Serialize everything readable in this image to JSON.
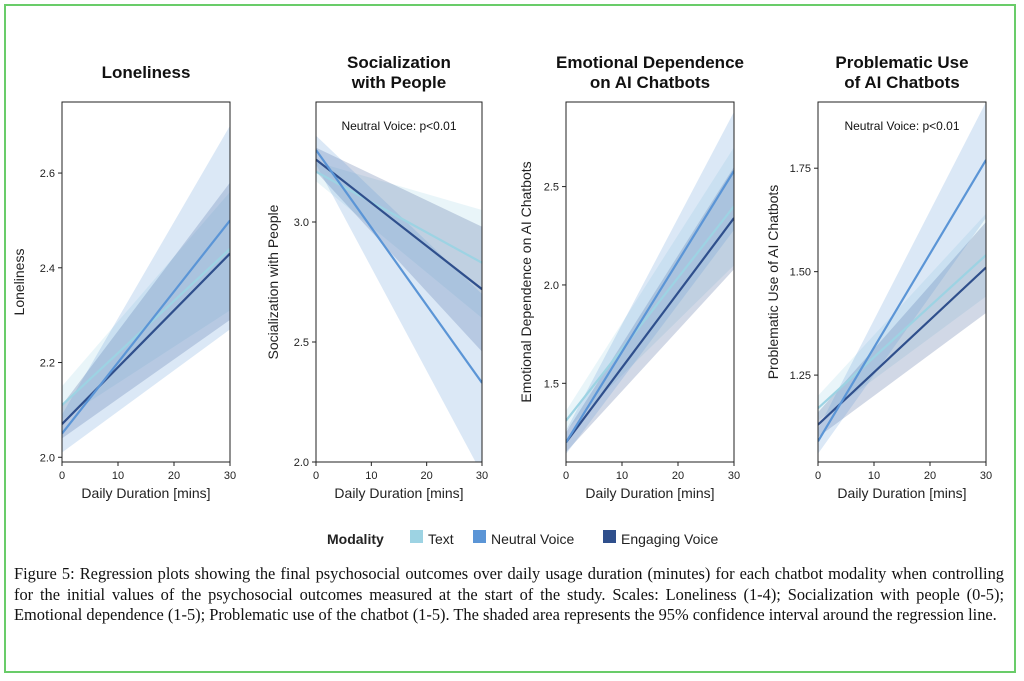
{
  "colors": {
    "Text": "#9dd3e3",
    "Neutral Voice": "#5b95d6",
    "Engaging Voice": "#2f4f8c"
  },
  "chart_data": [
    {
      "type": "line",
      "title": "Loneliness",
      "annotation": "",
      "xlabel": "Daily Duration [mins]",
      "ylabel": "Loneliness",
      "xlim": [
        0,
        30
      ],
      "ylim": [
        1.99,
        2.75
      ],
      "xticks": [
        0,
        10,
        20,
        30
      ],
      "yticks": [
        "2.0",
        "2.2",
        "2.4",
        "2.6"
      ],
      "series": [
        {
          "name": "Text",
          "x": [
            0,
            30
          ],
          "y": [
            2.11,
            2.44
          ],
          "ci_low": [
            2.08,
            2.31
          ],
          "ci_high": [
            2.15,
            2.56
          ]
        },
        {
          "name": "Neutral Voice",
          "x": [
            0,
            30
          ],
          "y": [
            2.05,
            2.5
          ],
          "ci_low": [
            2.01,
            2.27
          ],
          "ci_high": [
            2.09,
            2.7
          ]
        },
        {
          "name": "Engaging Voice",
          "x": [
            0,
            30
          ],
          "y": [
            2.07,
            2.43
          ],
          "ci_low": [
            2.04,
            2.29
          ],
          "ci_high": [
            2.11,
            2.58
          ]
        }
      ]
    },
    {
      "type": "line",
      "title": "Socialization with People",
      "annotation": "Neutral Voice: p<0.01",
      "xlabel": "Daily Duration [mins]",
      "ylabel": "Socialization with People",
      "xlim": [
        0,
        30
      ],
      "ylim": [
        2.0,
        3.5
      ],
      "xticks": [
        0,
        10,
        20,
        30
      ],
      "yticks": [
        "2.0",
        "2.5",
        "3.0"
      ],
      "series": [
        {
          "name": "Text",
          "x": [
            0,
            30
          ],
          "y": [
            3.21,
            2.83
          ],
          "ci_low": [
            3.17,
            2.6
          ],
          "ci_high": [
            3.25,
            3.05
          ]
        },
        {
          "name": "Neutral Voice",
          "x": [
            0,
            30
          ],
          "y": [
            3.3,
            2.33
          ],
          "ci_low": [
            3.24,
            1.95
          ],
          "ci_high": [
            3.36,
            2.7
          ]
        },
        {
          "name": "Engaging Voice",
          "x": [
            0,
            30
          ],
          "y": [
            3.26,
            2.72
          ],
          "ci_low": [
            3.21,
            2.46
          ],
          "ci_high": [
            3.31,
            2.98
          ]
        }
      ]
    },
    {
      "type": "line",
      "title": "Emotional Dependence on AI Chatbots",
      "annotation": "",
      "xlabel": "Daily Duration [mins]",
      "ylabel": "Emotional Dependence on AI Chatbots",
      "xlim": [
        0,
        30
      ],
      "ylim": [
        1.1,
        2.93
      ],
      "xticks": [
        0,
        10,
        20,
        30
      ],
      "yticks": [
        "1.5",
        "2.0",
        "2.5"
      ],
      "series": [
        {
          "name": "Text",
          "x": [
            0,
            30
          ],
          "y": [
            1.31,
            2.4
          ],
          "ci_low": [
            1.26,
            2.1
          ],
          "ci_high": [
            1.36,
            2.7
          ]
        },
        {
          "name": "Neutral Voice",
          "x": [
            0,
            30
          ],
          "y": [
            1.2,
            2.58
          ],
          "ci_low": [
            1.14,
            2.28
          ],
          "ci_high": [
            1.26,
            2.88
          ]
        },
        {
          "name": "Engaging Voice",
          "x": [
            0,
            30
          ],
          "y": [
            1.2,
            2.34
          ],
          "ci_low": [
            1.15,
            2.08
          ],
          "ci_high": [
            1.25,
            2.6
          ]
        }
      ]
    },
    {
      "type": "line",
      "title": "Problematic Use of AI Chatbots",
      "annotation": "Neutral Voice: p<0.01",
      "xlabel": "Daily Duration [mins]",
      "ylabel": "Problematic Use of AI Chatbots",
      "xlim": [
        0,
        30
      ],
      "ylim": [
        1.04,
        1.91
      ],
      "xticks": [
        0,
        10,
        20,
        30
      ],
      "yticks": [
        "1.25",
        "1.50",
        "1.75"
      ],
      "series": [
        {
          "name": "Text",
          "x": [
            0,
            30
          ],
          "y": [
            1.17,
            1.54
          ],
          "ci_low": [
            1.14,
            1.44
          ],
          "ci_high": [
            1.2,
            1.64
          ]
        },
        {
          "name": "Neutral Voice",
          "x": [
            0,
            30
          ],
          "y": [
            1.09,
            1.77
          ],
          "ci_low": [
            1.06,
            1.63
          ],
          "ci_high": [
            1.12,
            1.91
          ]
        },
        {
          "name": "Engaging Voice",
          "x": [
            0,
            30
          ],
          "y": [
            1.13,
            1.51
          ],
          "ci_low": [
            1.1,
            1.4
          ],
          "ci_high": [
            1.16,
            1.62
          ]
        }
      ]
    }
  ],
  "legend": {
    "title": "Modality",
    "items": [
      "Text",
      "Neutral Voice",
      "Engaging Voice"
    ]
  },
  "caption": "Figure 5: Regression plots showing the final psychosocial outcomes over daily usage duration (minutes) for each chatbot modality when controlling for the initial values of the psychosocial outcomes measured at the start of the study. Scales: Loneliness (1-4); Socialization with people (0-5); Emotional dependence (1-5); Problematic use of the chatbot (1-5). The shaded area represents the 95% confidence interval around the regression line."
}
